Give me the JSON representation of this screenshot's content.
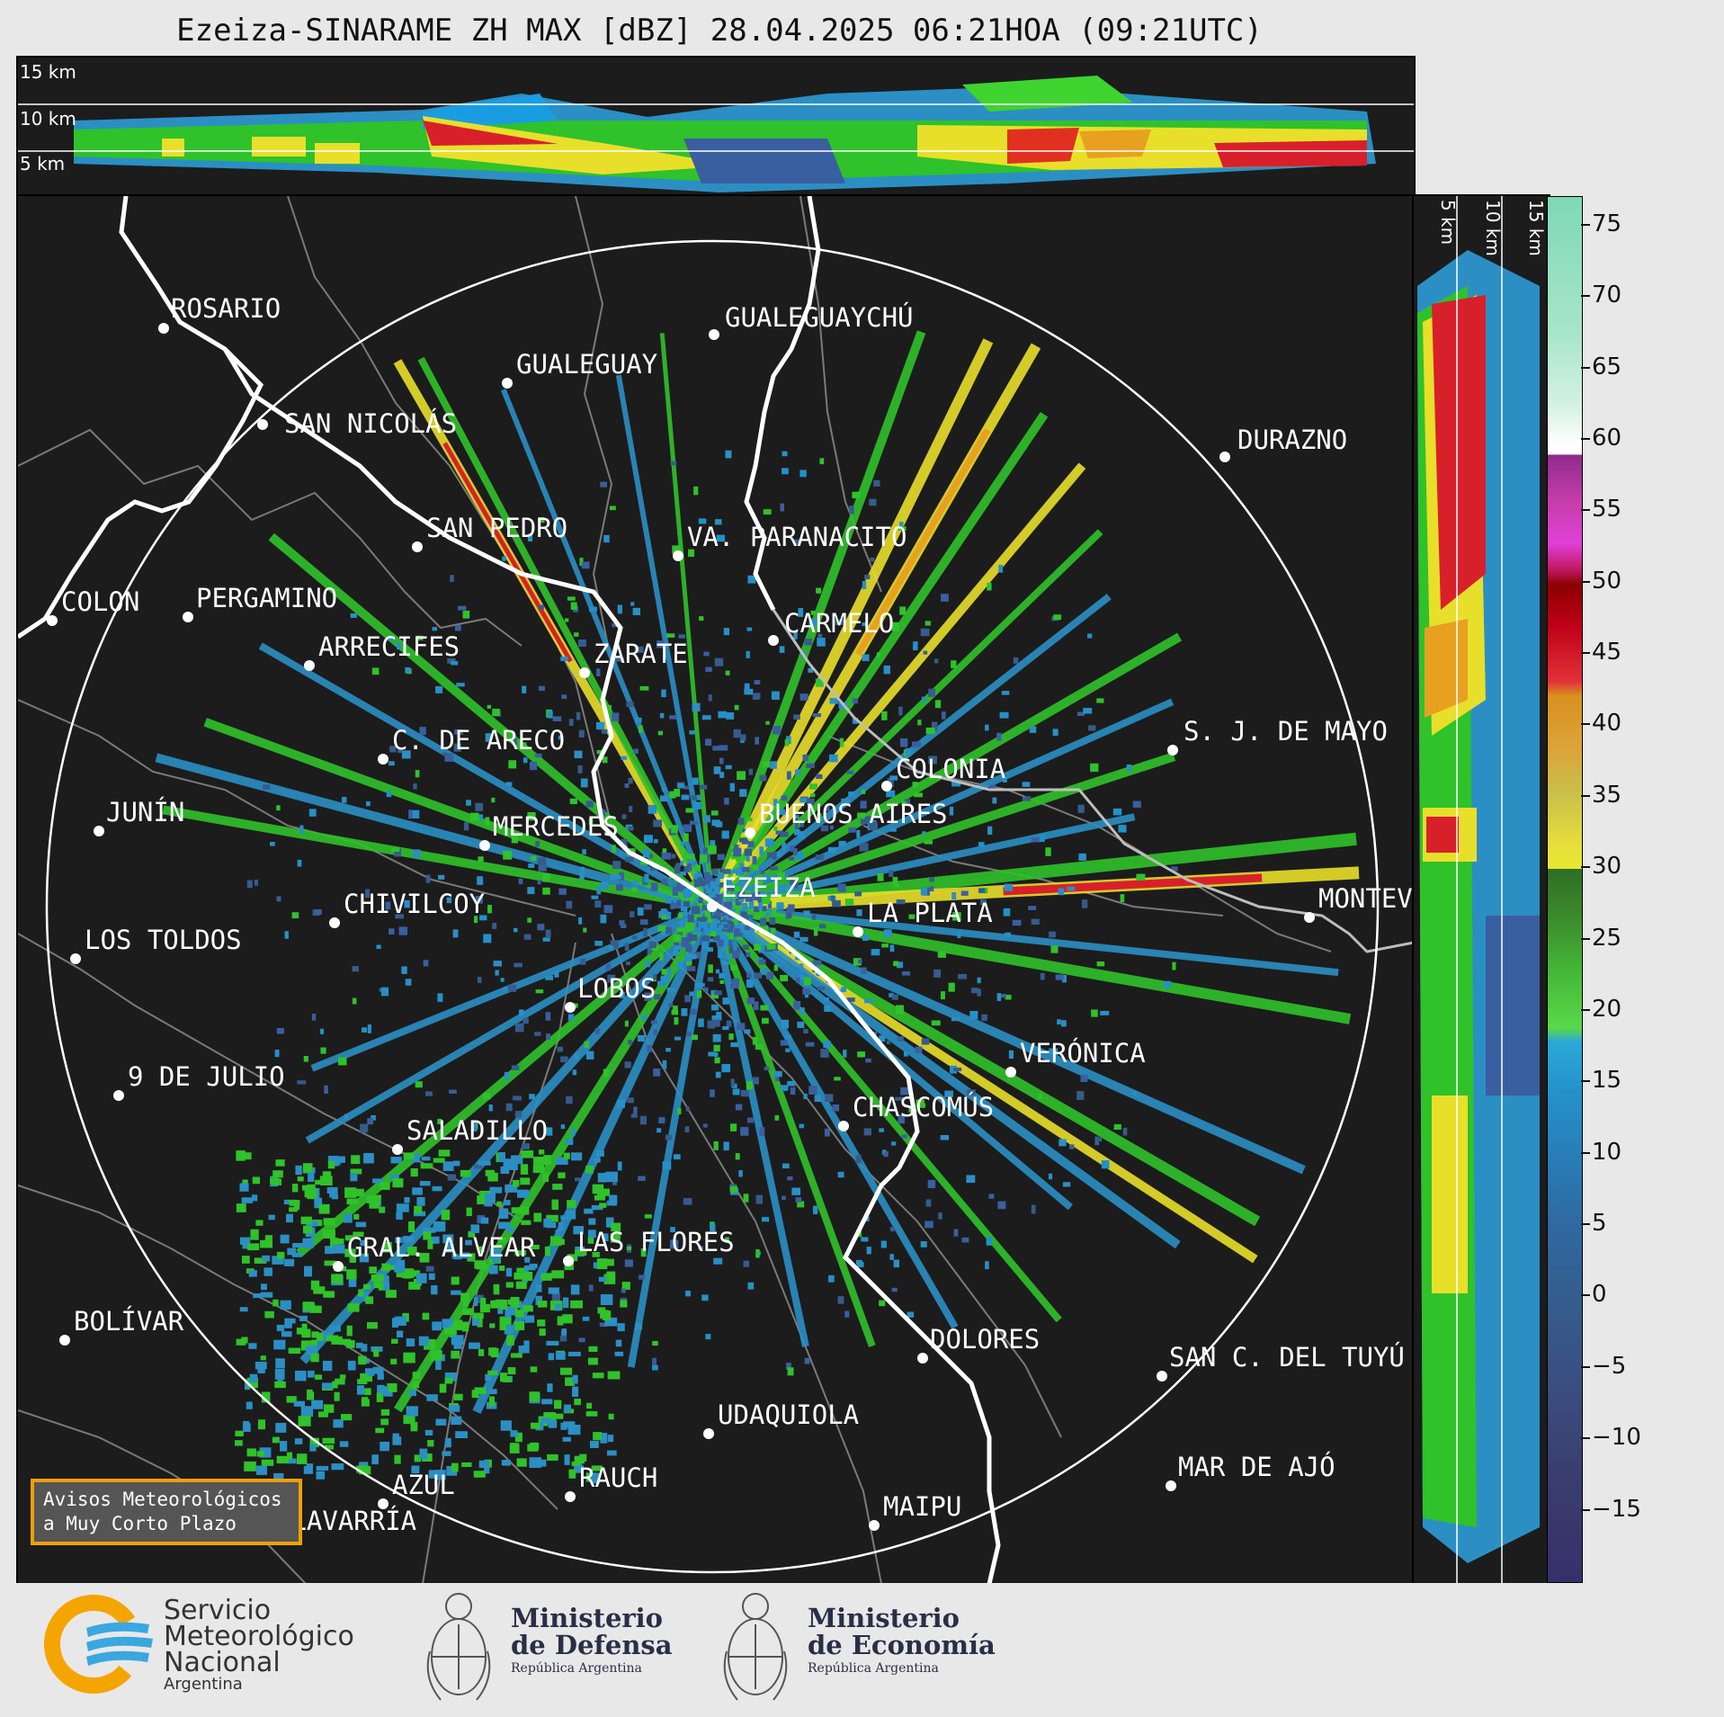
{
  "title": "Ezeiza-SINARAME ZH MAX [dBZ] 28.04.2025 06:21HOA (09:21UTC)",
  "top_panel": {
    "km_labels": [
      "15 km",
      "10 km",
      "5 km"
    ]
  },
  "side_panel": {
    "km_labels": [
      "5 km",
      "10 km",
      "15 km"
    ]
  },
  "colorbar": {
    "ticks": [
      "75",
      "70",
      "65",
      "60",
      "55",
      "50",
      "45",
      "40",
      "35",
      "30",
      "25",
      "20",
      "15",
      "10",
      "5",
      "0",
      "−5",
      "−10",
      "−15"
    ],
    "range": [
      -20,
      77
    ]
  },
  "cities": [
    {
      "name": "ROSARIO"
    },
    {
      "name": "GUALEGUAYCHÚ"
    },
    {
      "name": "GUALEGUAY"
    },
    {
      "name": "SAN NICOLÁS"
    },
    {
      "name": "DURAZNO"
    },
    {
      "name": "SAN PEDRO"
    },
    {
      "name": "VA. PARANACITO"
    },
    {
      "name": "COLON"
    },
    {
      "name": "PERGAMINO"
    },
    {
      "name": "CARMELO"
    },
    {
      "name": "ARRECIFES"
    },
    {
      "name": "ZÁRATE"
    },
    {
      "name": "S. J. DE MAYO"
    },
    {
      "name": "C. DE ARECO"
    },
    {
      "name": "COLONIA"
    },
    {
      "name": "JUNÍN"
    },
    {
      "name": "BUENOS AIRES"
    },
    {
      "name": "MERCEDES"
    },
    {
      "name": "EZEIZA"
    },
    {
      "name": "MONTEV"
    },
    {
      "name": "CHIVILCOY"
    },
    {
      "name": "LA PLATA"
    },
    {
      "name": "LOS TOLDOS"
    },
    {
      "name": "LOBOS"
    },
    {
      "name": "VERÓNICA"
    },
    {
      "name": "9 DE JULIO"
    },
    {
      "name": "CHASCOMÚS"
    },
    {
      "name": "SALADILLO"
    },
    {
      "name": "GRAL. ALVEAR"
    },
    {
      "name": "LAS FLORES"
    },
    {
      "name": "BOLÍVAR"
    },
    {
      "name": "DOLORES"
    },
    {
      "name": "SAN C. DEL TUYÚ"
    },
    {
      "name": "UDAQUIOLA"
    },
    {
      "name": "MAR DE AJÓ"
    },
    {
      "name": "RAUCH"
    },
    {
      "name": "AZUL"
    },
    {
      "name": "OLAVARRÍA"
    },
    {
      "name": "MAIPU"
    }
  ],
  "avisos": {
    "line1": "Avisos Meteorológicos",
    "line2": "a Muy Corto Plazo"
  },
  "logos": {
    "smn": {
      "line1": "Servicio",
      "line2": "Meteorológico",
      "line3": "Nacional",
      "line4": "Argentina"
    },
    "defensa": {
      "line1": "Ministerio",
      "line2": "de Defensa",
      "line3": "República Argentina"
    },
    "economia": {
      "line1": "Ministerio",
      "line2": "de Economía",
      "line3": "República Argentina"
    }
  },
  "colors": {
    "background": "#1c1c1c",
    "coast": "#ffffff",
    "avisos_border": "#f0a000",
    "smn_orange": "#f5a500",
    "smn_blue": "#3aa7e0"
  }
}
